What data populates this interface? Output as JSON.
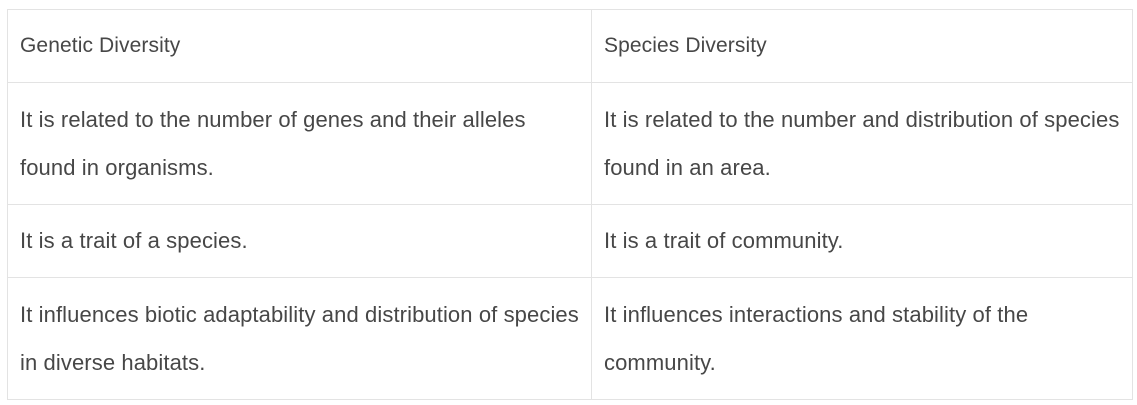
{
  "table": {
    "header": {
      "col1": "Genetic Diversity",
      "col2": "Species Diversity"
    },
    "rows": [
      {
        "genetic": "It is related to the number of genes and their alleles found in organisms.",
        "species": "It is related to the number and distribution of species found in an area."
      },
      {
        "genetic": "It is a trait of a species.",
        "species": "It is a trait of community."
      },
      {
        "genetic": "It influences biotic adaptability and distribution of species in diverse habitats.",
        "species": "It influences interactions and stability of the community."
      }
    ]
  }
}
